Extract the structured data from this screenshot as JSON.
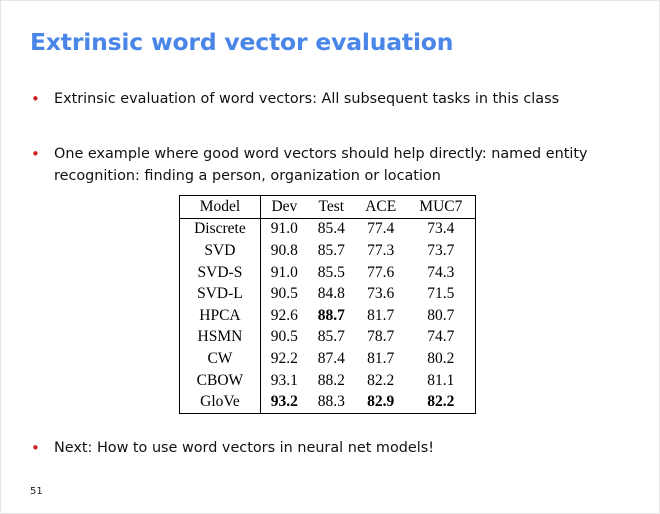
{
  "slide": {
    "title": "Extrinsic word vector evaluation",
    "bullets": [
      "Extrinsic evaluation of word vectors: All subsequent tasks in this class",
      "One example where good word vectors should help directly: named entity recognition: finding a person, organization or location",
      "Next: How to use word vectors in neural net models!"
    ],
    "bullet_symbol": "•",
    "slide_number": "51"
  },
  "table": {
    "columns": [
      "Model",
      "Dev",
      "Test",
      "ACE",
      "MUC7"
    ],
    "rows": [
      {
        "model": "Discrete",
        "dev": "91.0",
        "test": "85.4",
        "ace": "77.4",
        "muc7": "73.4"
      },
      {
        "model": "SVD",
        "dev": "90.8",
        "test": "85.7",
        "ace": "77.3",
        "muc7": "73.7"
      },
      {
        "model": "SVD-S",
        "dev": "91.0",
        "test": "85.5",
        "ace": "77.6",
        "muc7": "74.3"
      },
      {
        "model": "SVD-L",
        "dev": "90.5",
        "test": "84.8",
        "ace": "73.6",
        "muc7": "71.5"
      },
      {
        "model": "HPCA",
        "dev": "92.6",
        "test": "88.7",
        "ace": "81.7",
        "muc7": "80.7"
      },
      {
        "model": "HSMN",
        "dev": "90.5",
        "test": "85.7",
        "ace": "78.7",
        "muc7": "74.7"
      },
      {
        "model": "CW",
        "dev": "92.2",
        "test": "87.4",
        "ace": "81.7",
        "muc7": "80.2"
      },
      {
        "model": "CBOW",
        "dev": "93.1",
        "test": "88.2",
        "ace": "82.2",
        "muc7": "81.1"
      },
      {
        "model": "GloVe",
        "dev": "93.2",
        "test": "88.3",
        "ace": "82.9",
        "muc7": "82.2"
      }
    ],
    "bold_cells": [
      "HPCA.test",
      "GloVe.dev",
      "GloVe.ace",
      "GloVe.muc7"
    ]
  },
  "colors": {
    "title": "#4a86e8",
    "bullet": "#cc1f1f",
    "text": "#111111"
  }
}
